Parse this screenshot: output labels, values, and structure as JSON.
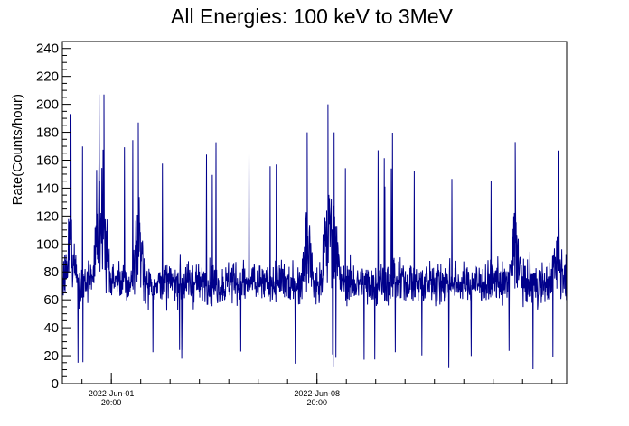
{
  "chart_data": {
    "type": "line",
    "title": "All Energies:  100 keV to 3MeV",
    "xlabel": "",
    "ylabel": "Rate(Counts/hour)",
    "ylim": [
      0,
      245
    ],
    "y_ticks": [
      0,
      20,
      40,
      60,
      80,
      100,
      120,
      140,
      160,
      180,
      200,
      220,
      240
    ],
    "x_tick_labels": [
      {
        "date": "2022-Jun-01",
        "time": "20:00"
      },
      {
        "date": "2022-Jun-08",
        "time": "20:00"
      }
    ],
    "x_range_hours": [
      -40,
      372
    ],
    "grid": false,
    "legend": "none",
    "series": [
      {
        "color": "#00008b",
        "style": "histogram, hourly bins",
        "x_start_hour": -40,
        "x_end_hour": 372,
        "baseline_mean": 72,
        "typical_range": [
          35,
          115
        ],
        "peaks": [
          {
            "hour": -33,
            "value": 193
          },
          {
            "hour": -10,
            "value": 207
          },
          {
            "hour": -6,
            "value": 207
          },
          {
            "hour": 22,
            "value": 187
          },
          {
            "hour": 160,
            "value": 180
          },
          {
            "hour": 177,
            "value": 200
          },
          {
            "hour": 182,
            "value": 180
          },
          {
            "hour": 330,
            "value": 173
          },
          {
            "hour": 365,
            "value": 167
          }
        ]
      }
    ]
  }
}
